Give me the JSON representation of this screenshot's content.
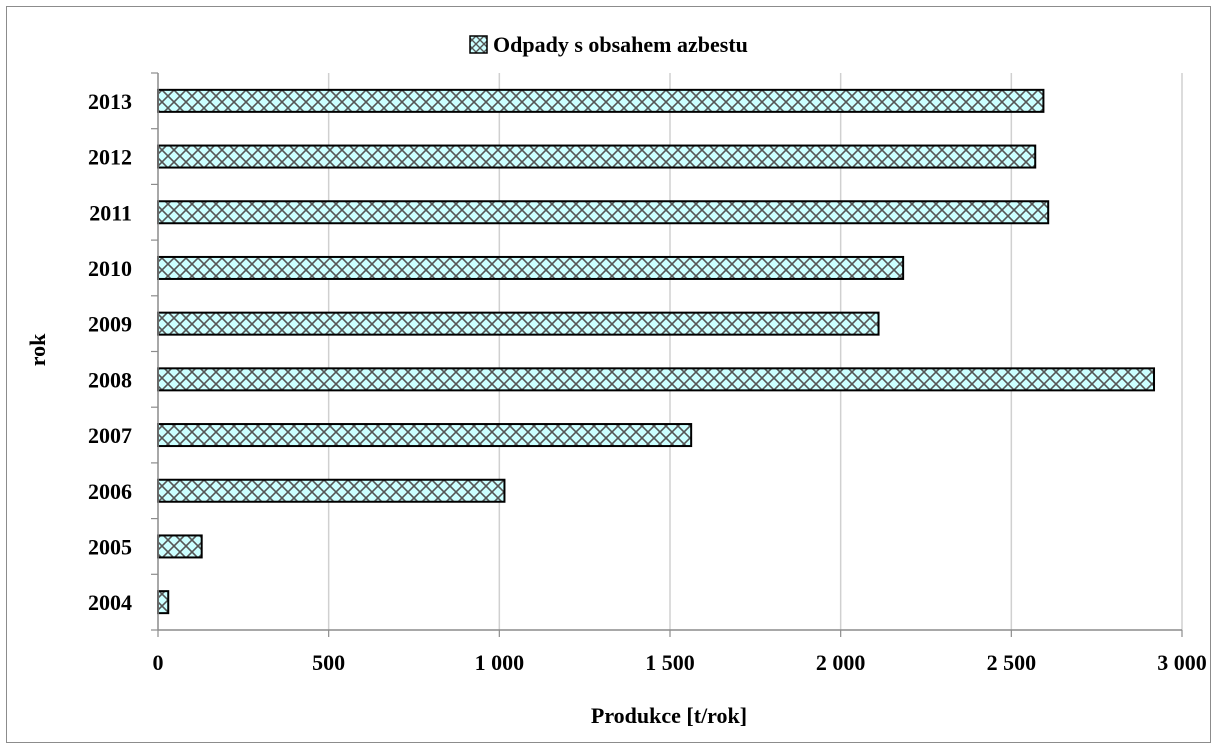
{
  "chart_data": {
    "type": "bar",
    "orientation": "horizontal",
    "categories": [
      "2004",
      "2005",
      "2006",
      "2007",
      "2008",
      "2009",
      "2010",
      "2011",
      "2012",
      "2013"
    ],
    "series": [
      {
        "name": "Odpady s obsahem azbestu",
        "values": [
          30,
          128,
          1015,
          1562,
          2918,
          2111,
          2183,
          2608,
          2570,
          2594
        ]
      }
    ],
    "xlabel": "Produkce [t/rok]",
    "ylabel": "rok",
    "xlim": [
      0,
      3000
    ],
    "xticks": [
      0,
      500,
      1000,
      1500,
      2000,
      2500,
      3000
    ],
    "xtick_labels": [
      "0",
      "500",
      "1 000",
      "1 500",
      "2 000",
      "2 500",
      "3 000"
    ],
    "grid": true,
    "legend_position": "top",
    "colors": {
      "bar_fill": "#ccffff",
      "hatch": "#555555",
      "bar_stroke": "#000000",
      "grid": "#d0d0d0"
    }
  }
}
